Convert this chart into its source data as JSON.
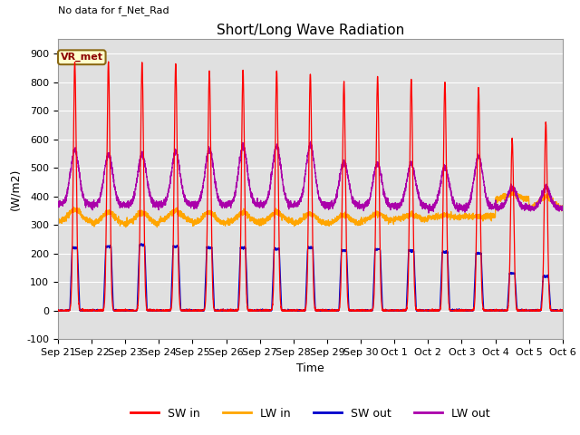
{
  "title": "Short/Long Wave Radiation",
  "ylabel": "(W/m2)",
  "xlabel": "Time",
  "top_left_text": "No data for f_Net_Rad",
  "legend_label": "VR_met",
  "ylim": [
    -100,
    950
  ],
  "yticks": [
    -100,
    0,
    100,
    200,
    300,
    400,
    500,
    600,
    700,
    800,
    900
  ],
  "plot_bg_color": "#e0e0e0",
  "fig_bg_color": "#ffffff",
  "sw_in_color": "#ff0000",
  "lw_in_color": "#ffa500",
  "sw_out_color": "#0000cc",
  "lw_out_color": "#aa00aa",
  "x_tick_labels": [
    "Sep 21",
    "Sep 22",
    "Sep 23",
    "Sep 24",
    "Sep 25",
    "Sep 26",
    "Sep 27",
    "Sep 28",
    "Sep 29",
    "Sep 30",
    "Oct 1",
    "Oct 2",
    "Oct 3",
    "Oct 4",
    "Oct 5",
    "Oct 6"
  ],
  "num_days": 15,
  "title_fontsize": 11,
  "axis_fontsize": 9,
  "tick_fontsize": 8,
  "sw_peaks": [
    870,
    870,
    870,
    865,
    840,
    840,
    840,
    830,
    800,
    820,
    810,
    800,
    780,
    600,
    660
  ],
  "sw_out_peaks": [
    220,
    225,
    230,
    225,
    220,
    220,
    215,
    220,
    210,
    215,
    210,
    205,
    200,
    130,
    120
  ],
  "lw_in_base": [
    310,
    305,
    305,
    315,
    305,
    308,
    310,
    305,
    305,
    315,
    320,
    325,
    330,
    390,
    360
  ],
  "lw_in_peak": [
    355,
    345,
    345,
    350,
    345,
    345,
    345,
    340,
    335,
    340,
    335,
    335,
    330,
    410,
    400
  ],
  "lw_out_base": [
    370,
    370,
    370,
    372,
    370,
    372,
    370,
    370,
    368,
    365,
    365,
    360,
    360,
    360,
    358
  ],
  "lw_out_peak": [
    560,
    545,
    545,
    555,
    565,
    575,
    575,
    580,
    520,
    515,
    515,
    500,
    540,
    430,
    430
  ]
}
